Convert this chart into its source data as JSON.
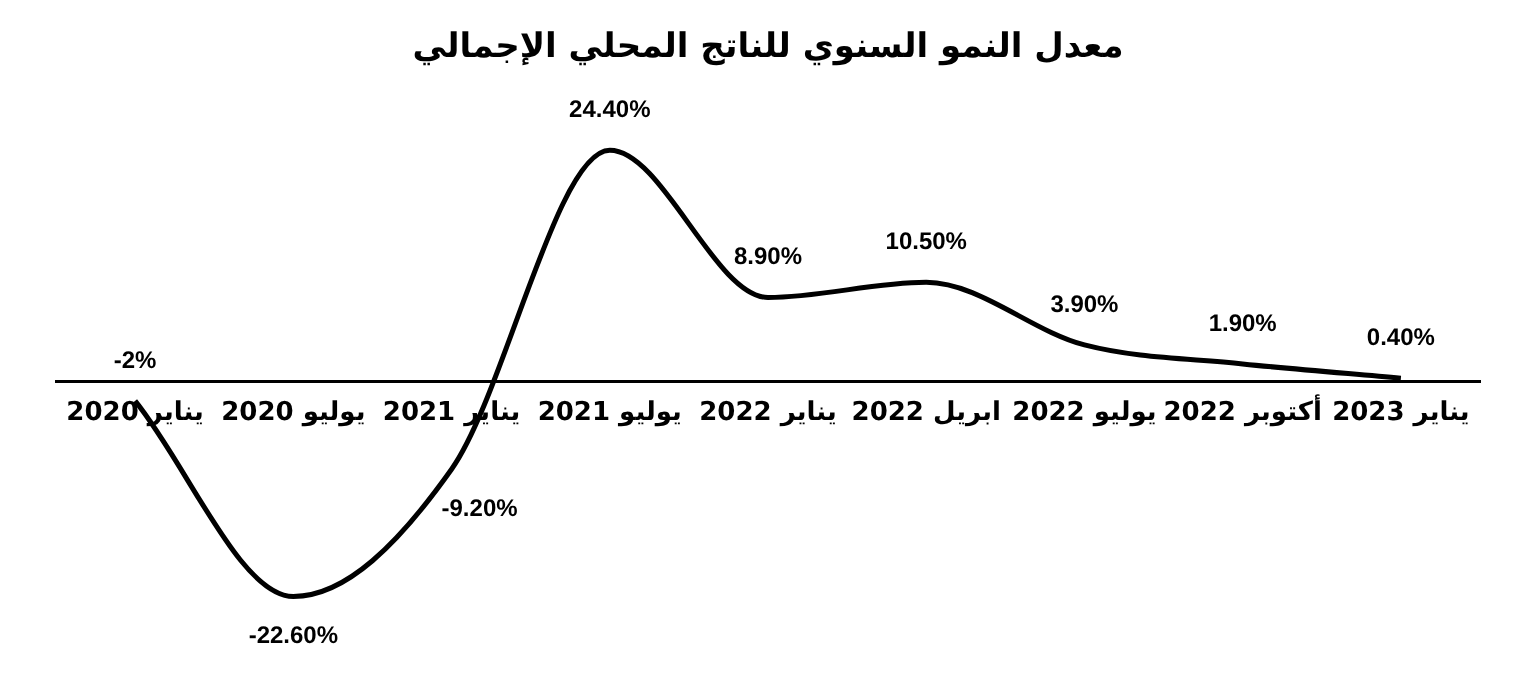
{
  "chart_data": {
    "type": "line",
    "title": "معدل النمو السنوي للناتج المحلي الإجمالي",
    "categories": [
      "يناير 2020",
      "يوليو 2020",
      "يناير 2021",
      "يوليو 2021",
      "يناير 2022",
      "ابريل 2022",
      "يوليو 2022",
      "أكتوبر 2022",
      "يناير 2023"
    ],
    "series": [
      {
        "color": "#000000",
        "values": [
          -2,
          -22.6,
          -9.2,
          24.4,
          8.9,
          10.5,
          3.9,
          1.9,
          0.4
        ],
        "value_labels": [
          "-2%",
          "-22.60%",
          "-9.20%",
          "24.40%",
          "8.90%",
          "10.50%",
          "3.90%",
          "1.90%",
          "0.40%"
        ]
      }
    ],
    "grid": false,
    "legend": false,
    "marker": "none",
    "line_style": "solid"
  }
}
